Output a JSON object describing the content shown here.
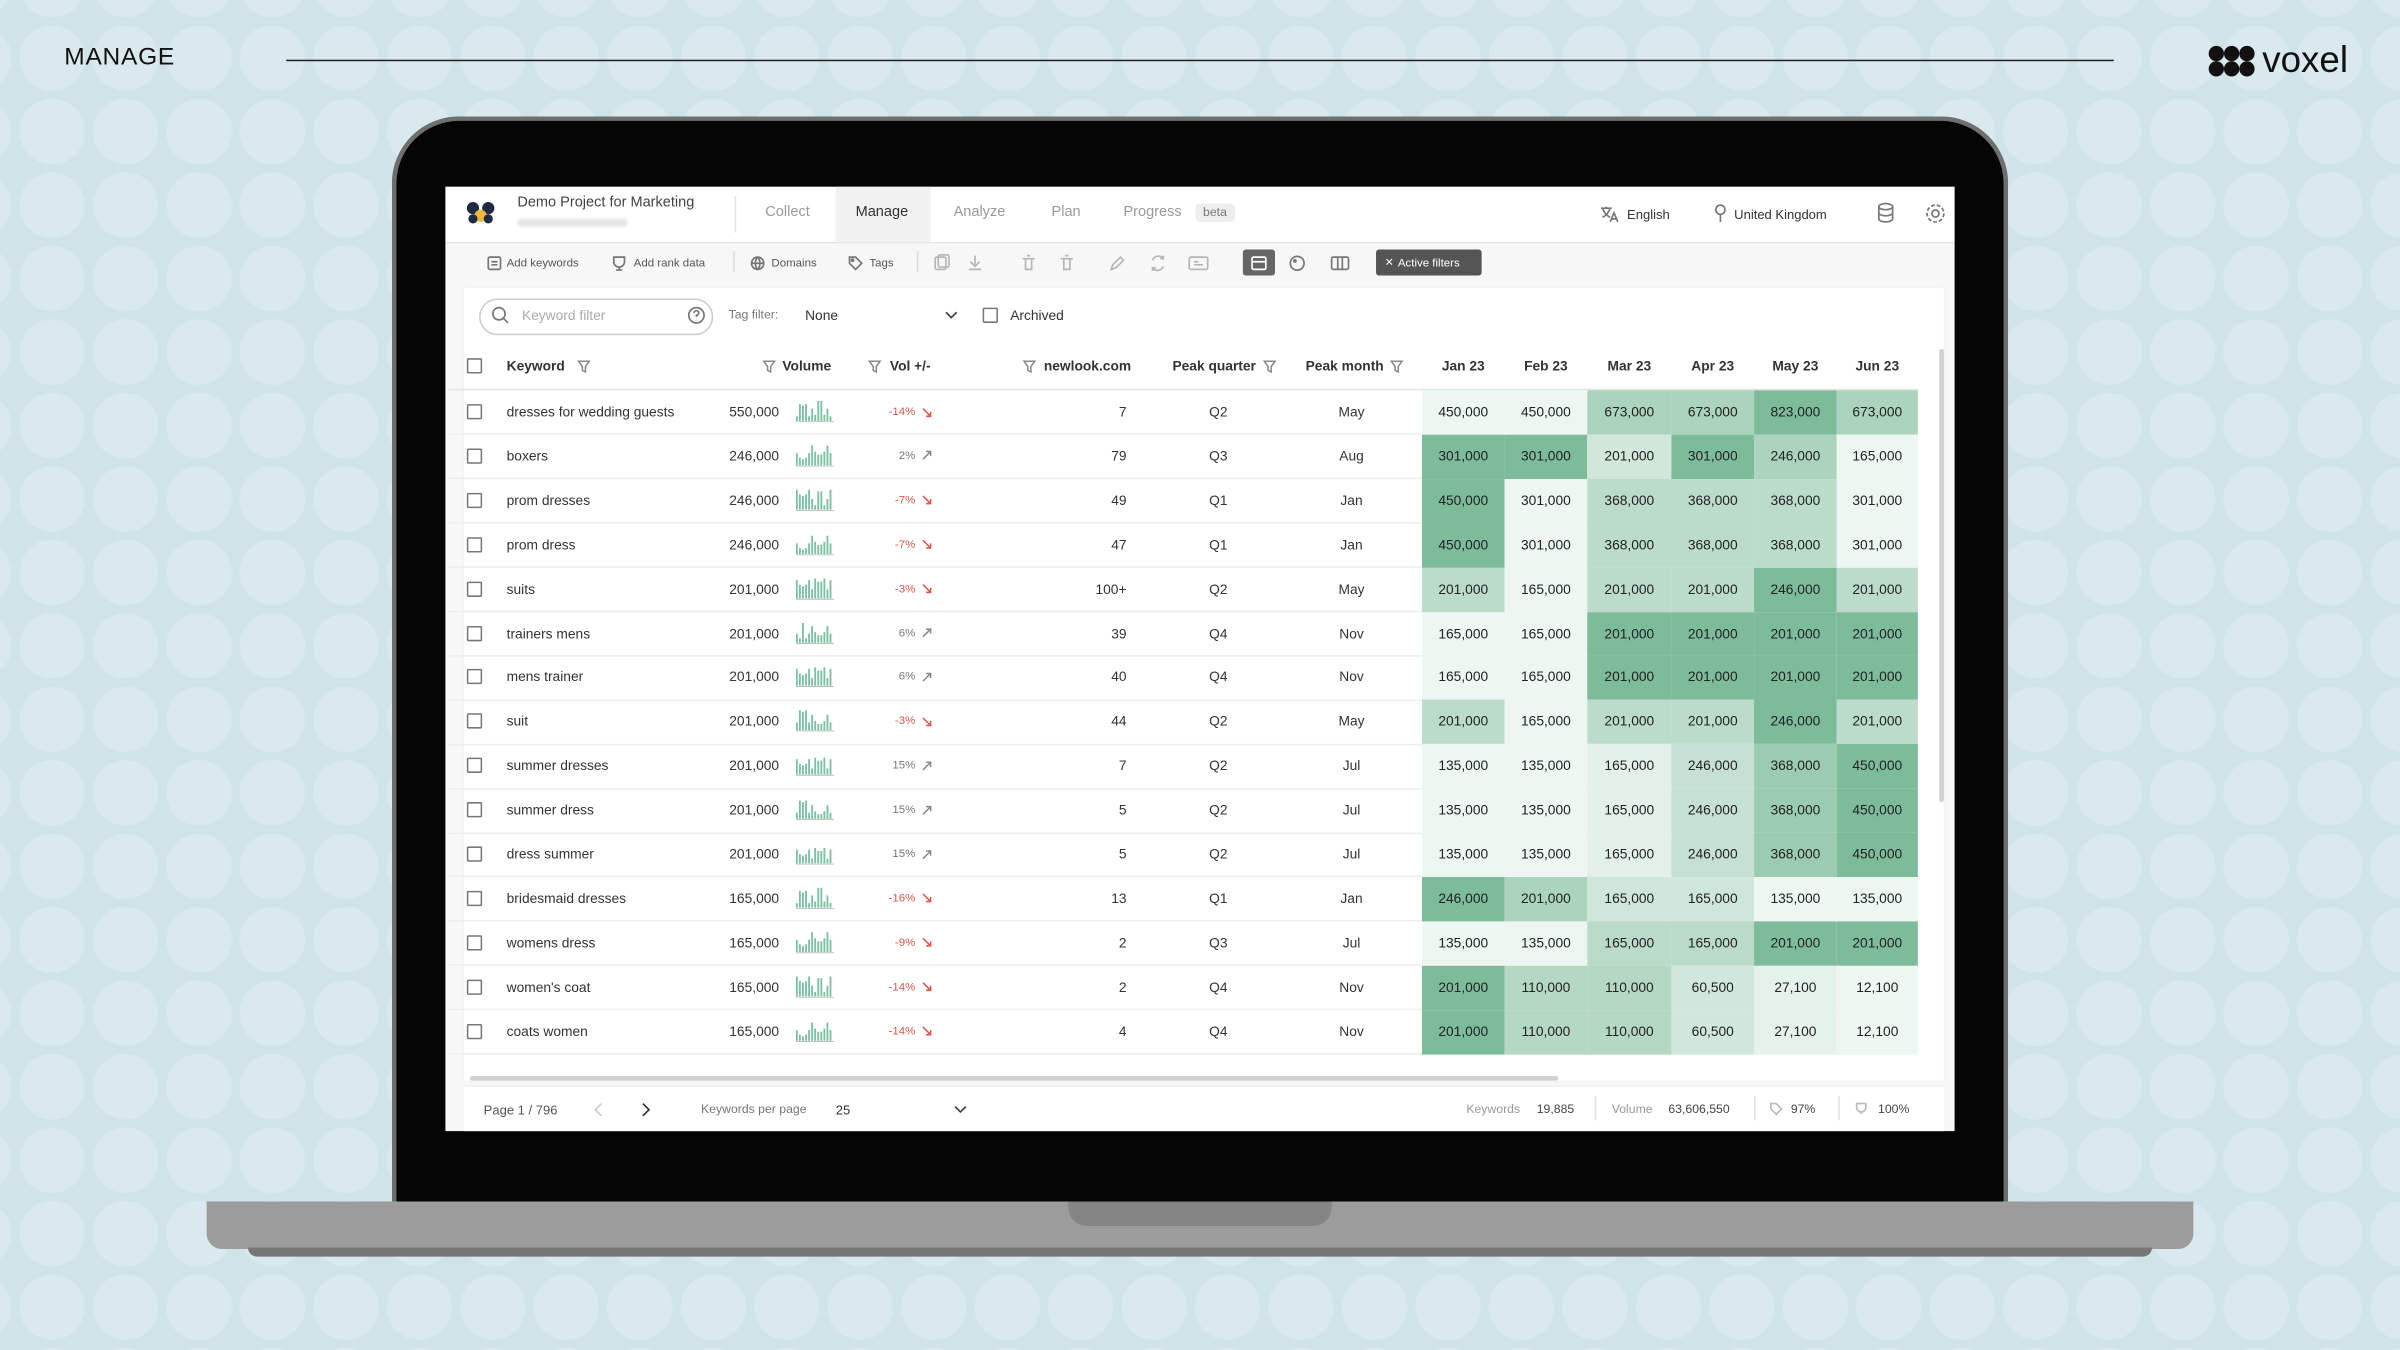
{
  "header": {
    "section": "MANAGE",
    "brand": "voxel"
  },
  "app": {
    "project": "Demo Project for Marketing",
    "tabs": [
      "Collect",
      "Manage",
      "Analyze",
      "Plan",
      "Progress"
    ],
    "badge": "beta",
    "language": "English",
    "location": "United Kingdom"
  },
  "toolbar": [
    "Add keywords",
    "Add rank data",
    "Domains",
    "Tags",
    "Active filters"
  ],
  "filters": {
    "search": "Keyword filter",
    "tag_label": "Tag filter:",
    "tag_value": "None",
    "archived": "Archived"
  },
  "table": {
    "columns": [
      "Keyword",
      "Volume",
      "Vol +/-",
      "newlook.com",
      "Peak quarter",
      "Peak month",
      "Jan 23",
      "Feb 23",
      "Mar 23",
      "Apr 23",
      "May 23",
      "Jun 23"
    ],
    "rows": [
      {
        "keyword": "dresses for wedding guests",
        "volume": "550,000",
        "change": "-14%",
        "rank": "7",
        "quarter": "Q2",
        "month": "May",
        "months": [
          "450,000",
          "450,000",
          "673,000",
          "673,000",
          "823,000",
          "673,000"
        ]
      },
      {
        "keyword": "boxers",
        "volume": "246,000",
        "change": "2%",
        "rank": "79",
        "quarter": "Q3",
        "month": "Aug",
        "months": [
          "301,000",
          "301,000",
          "201,000",
          "301,000",
          "246,000",
          "165,000"
        ]
      },
      {
        "keyword": "prom dresses",
        "volume": "246,000",
        "change": "-7%",
        "rank": "49",
        "quarter": "Q1",
        "month": "Jan",
        "months": [
          "450,000",
          "301,000",
          "368,000",
          "368,000",
          "368,000",
          "301,000"
        ]
      },
      {
        "keyword": "prom dress",
        "volume": "246,000",
        "change": "-7%",
        "rank": "47",
        "quarter": "Q1",
        "month": "Jan",
        "months": [
          "450,000",
          "301,000",
          "368,000",
          "368,000",
          "368,000",
          "301,000"
        ]
      },
      {
        "keyword": "suits",
        "volume": "201,000",
        "change": "-3%",
        "rank": "100+",
        "quarter": "Q2",
        "month": "May",
        "months": [
          "201,000",
          "165,000",
          "201,000",
          "201,000",
          "246,000",
          "201,000"
        ]
      },
      {
        "keyword": "trainers mens",
        "volume": "201,000",
        "change": "6%",
        "rank": "39",
        "quarter": "Q4",
        "month": "Nov",
        "months": [
          "165,000",
          "165,000",
          "201,000",
          "201,000",
          "201,000",
          "201,000"
        ]
      },
      {
        "keyword": "mens trainer",
        "volume": "201,000",
        "change": "6%",
        "rank": "40",
        "quarter": "Q4",
        "month": "Nov",
        "months": [
          "165,000",
          "165,000",
          "201,000",
          "201,000",
          "201,000",
          "201,000"
        ]
      },
      {
        "keyword": "suit",
        "volume": "201,000",
        "change": "-3%",
        "rank": "44",
        "quarter": "Q2",
        "month": "May",
        "months": [
          "201,000",
          "165,000",
          "201,000",
          "201,000",
          "246,000",
          "201,000"
        ]
      },
      {
        "keyword": "summer dresses",
        "volume": "201,000",
        "change": "15%",
        "rank": "7",
        "quarter": "Q2",
        "month": "Jul",
        "months": [
          "135,000",
          "135,000",
          "165,000",
          "246,000",
          "368,000",
          "450,000"
        ]
      },
      {
        "keyword": "summer dress",
        "volume": "201,000",
        "change": "15%",
        "rank": "5",
        "quarter": "Q2",
        "month": "Jul",
        "months": [
          "135,000",
          "135,000",
          "165,000",
          "246,000",
          "368,000",
          "450,000"
        ]
      },
      {
        "keyword": "dress summer",
        "volume": "201,000",
        "change": "15%",
        "rank": "5",
        "quarter": "Q2",
        "month": "Jul",
        "months": [
          "135,000",
          "135,000",
          "165,000",
          "246,000",
          "368,000",
          "450,000"
        ]
      },
      {
        "keyword": "bridesmaid dresses",
        "volume": "165,000",
        "change": "-16%",
        "rank": "13",
        "quarter": "Q1",
        "month": "Jan",
        "months": [
          "246,000",
          "201,000",
          "165,000",
          "165,000",
          "135,000",
          "135,000"
        ]
      },
      {
        "keyword": "womens dress",
        "volume": "165,000",
        "change": "-9%",
        "rank": "2",
        "quarter": "Q3",
        "month": "Jul",
        "months": [
          "135,000",
          "135,000",
          "165,000",
          "165,000",
          "201,000",
          "201,000"
        ]
      },
      {
        "keyword": "women's coat",
        "volume": "165,000",
        "change": "-14%",
        "rank": "2",
        "quarter": "Q4",
        "month": "Nov",
        "months": [
          "201,000",
          "110,000",
          "110,000",
          "60,500",
          "27,100",
          "12,100"
        ]
      },
      {
        "keyword": "coats women",
        "volume": "165,000",
        "change": "-14%",
        "rank": "4",
        "quarter": "Q4",
        "month": "Nov",
        "months": [
          "201,000",
          "110,000",
          "110,000",
          "60,500",
          "27,100",
          "12,100"
        ]
      }
    ]
  },
  "footer": {
    "page": "Page 1 / 796",
    "per_page_label": "Keywords per page",
    "per_page": "25",
    "keywords_label": "Keywords",
    "keywords": "19,885",
    "volume_label": "Volume",
    "volume": "63,606,550",
    "tag_pct": "97%",
    "rank_pct": "100%"
  }
}
